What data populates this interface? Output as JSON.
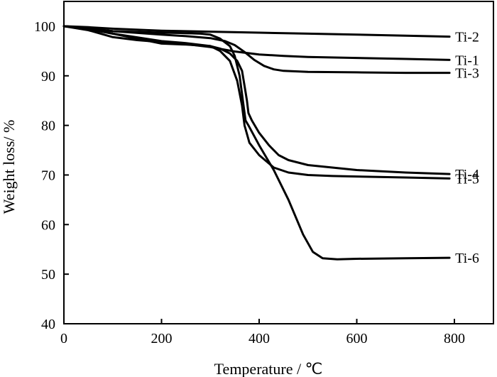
{
  "chart_data": {
    "type": "line",
    "title": "",
    "xlabel": "Temperature / ℃",
    "ylabel": "Weight loss/ %",
    "xlim": [
      0,
      880
    ],
    "ylim": [
      40,
      105
    ],
    "xticks": [
      0,
      200,
      400,
      600,
      800
    ],
    "yticks": [
      40,
      50,
      60,
      70,
      80,
      90,
      100
    ],
    "grid": false,
    "legend": "inline-right",
    "line_color": "#000000",
    "series": [
      {
        "name": "Ti-2",
        "x": [
          0,
          50,
          100,
          200,
          300,
          400,
          500,
          600,
          700,
          790
        ],
        "y": [
          100,
          99.8,
          99.5,
          99.1,
          98.9,
          98.7,
          98.5,
          98.3,
          98.1,
          97.9
        ]
      },
      {
        "name": "Ti-1",
        "x": [
          0,
          50,
          100,
          150,
          200,
          250,
          300,
          350,
          400,
          450,
          500,
          600,
          700,
          790
        ],
        "y": [
          100,
          99.2,
          97.8,
          97.2,
          96.8,
          96.4,
          95.8,
          94.9,
          94.3,
          94.0,
          93.8,
          93.6,
          93.4,
          93.2
        ]
      },
      {
        "name": "Ti-3",
        "x": [
          0,
          50,
          100,
          200,
          250,
          300,
          330,
          350,
          370,
          390,
          410,
          430,
          450,
          500,
          600,
          700,
          790
        ],
        "y": [
          100,
          99.6,
          99.0,
          98.3,
          98.0,
          97.6,
          97.0,
          96.2,
          94.8,
          93.2,
          92.0,
          91.3,
          91.0,
          90.8,
          90.7,
          90.6,
          90.6
        ]
      },
      {
        "name": "Ti-4",
        "x": [
          0,
          50,
          100,
          200,
          250,
          300,
          320,
          340,
          355,
          365,
          370,
          375,
          378,
          385,
          400,
          420,
          440,
          460,
          500,
          600,
          700,
          790
        ],
        "y": [
          100,
          99.5,
          98.5,
          96.5,
          96.3,
          96.0,
          95.5,
          94.5,
          93.0,
          91.0,
          88.0,
          85.0,
          82.5,
          81.0,
          78.5,
          76.0,
          74.0,
          73.0,
          72.0,
          71.0,
          70.5,
          70.2
        ]
      },
      {
        "name": "Ti-5",
        "x": [
          0,
          50,
          100,
          200,
          250,
          300,
          320,
          340,
          355,
          365,
          370,
          373,
          380,
          400,
          430,
          460,
          500,
          550,
          600,
          700,
          790
        ],
        "y": [
          100,
          99.4,
          98.5,
          97.0,
          96.6,
          96.0,
          95.0,
          93.0,
          89.0,
          84.0,
          80.0,
          79.0,
          76.5,
          74.0,
          71.5,
          70.5,
          70.0,
          69.8,
          69.7,
          69.5,
          69.3
        ]
      },
      {
        "name": "Ti-6",
        "x": [
          0,
          50,
          100,
          200,
          250,
          280,
          300,
          320,
          340,
          350,
          360,
          368,
          372,
          378,
          400,
          430,
          460,
          490,
          510,
          530,
          560,
          600,
          700,
          790
        ],
        "y": [
          100,
          99.5,
          99.0,
          98.7,
          98.6,
          98.5,
          98.3,
          97.5,
          96.0,
          94.0,
          90.0,
          84.0,
          81.0,
          80.0,
          76.0,
          71.0,
          65.0,
          58.0,
          54.5,
          53.2,
          53.0,
          53.1,
          53.2,
          53.3
        ]
      }
    ]
  }
}
